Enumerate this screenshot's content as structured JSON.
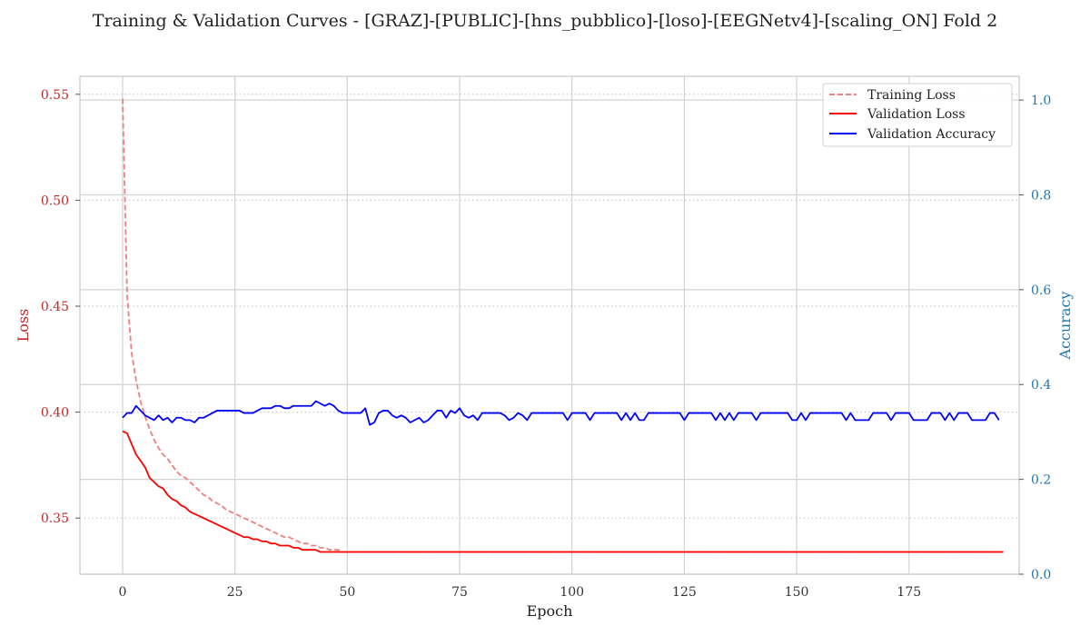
{
  "chart_data": {
    "type": "line",
    "title": "Training & Validation Curves - [GRAZ]-[PUBLIC]-[hns_pubblico]-[loso]-[EEGNetv4]-[scaling_ON] Fold 2",
    "xlabel": "Epoch",
    "ylabel_left": "Loss",
    "ylabel_right": "Accuracy",
    "xlim": [
      -9.5,
      199.5
    ],
    "ylim_left": [
      0.3235,
      0.5585
    ],
    "ylim_right": [
      0.0,
      1.05
    ],
    "xticks": [
      0,
      25,
      50,
      75,
      100,
      125,
      150,
      175
    ],
    "yticks_left": [
      0.35,
      0.4,
      0.45,
      0.5,
      0.55
    ],
    "yticks_left_labels": [
      "0.35",
      "0.40",
      "0.45",
      "0.50",
      "0.55"
    ],
    "yticks_right": [
      0.0,
      0.2,
      0.4,
      0.6,
      0.8,
      1.0
    ],
    "yticks_right_labels": [
      "0.0",
      "0.2",
      "0.4",
      "0.6",
      "0.8",
      "1.0"
    ],
    "grid": true,
    "legend_position": "top-right",
    "colors": {
      "training_loss": "#f08080",
      "validation_loss": "#ff0000",
      "validation_accuracy": "#0000ff",
      "left_axis": "#c62828",
      "right_axis": "#1f77b4"
    },
    "series": [
      {
        "name": "Training Loss",
        "axis": "left",
        "style": "dashed",
        "x_start": 0,
        "values": [
          0.548,
          0.455,
          0.428,
          0.415,
          0.405,
          0.398,
          0.392,
          0.387,
          0.383,
          0.38,
          0.378,
          0.375,
          0.372,
          0.37,
          0.369,
          0.367,
          0.365,
          0.363,
          0.361,
          0.36,
          0.358,
          0.357,
          0.356,
          0.354,
          0.353,
          0.352,
          0.351,
          0.35,
          0.349,
          0.348,
          0.347,
          0.346,
          0.345,
          0.344,
          0.343,
          0.342,
          0.341,
          0.341,
          0.34,
          0.339,
          0.338,
          0.338,
          0.337,
          0.337,
          0.336,
          0.336,
          0.335,
          0.335,
          0.335,
          0.334,
          0.334,
          0.334,
          0.334,
          0.334,
          0.334,
          0.334,
          0.334,
          0.334,
          0.334,
          0.334,
          0.334,
          0.334,
          0.334,
          0.334,
          0.334,
          0.334,
          0.334,
          0.334,
          0.334,
          0.334,
          0.334,
          0.334,
          0.334,
          0.334,
          0.334,
          0.334,
          0.334,
          0.334,
          0.334,
          0.334,
          0.334,
          0.334,
          0.334,
          0.334,
          0.334,
          0.334,
          0.334,
          0.334,
          0.334,
          0.334,
          0.334,
          0.334,
          0.334,
          0.334,
          0.334,
          0.334,
          0.334,
          0.334,
          0.334,
          0.334,
          0.334,
          0.334,
          0.334,
          0.334,
          0.334,
          0.334,
          0.334,
          0.334,
          0.334,
          0.334,
          0.334,
          0.334,
          0.334,
          0.334,
          0.334,
          0.334,
          0.334,
          0.334,
          0.334,
          0.334,
          0.334,
          0.334,
          0.334,
          0.334,
          0.334,
          0.334,
          0.334,
          0.334,
          0.334,
          0.334,
          0.334,
          0.334,
          0.334,
          0.334,
          0.334,
          0.334,
          0.334,
          0.334,
          0.334,
          0.334,
          0.334,
          0.334,
          0.334,
          0.334,
          0.334,
          0.334,
          0.334,
          0.334,
          0.334,
          0.334,
          0.334,
          0.334,
          0.334,
          0.334,
          0.334,
          0.334,
          0.334,
          0.334,
          0.334,
          0.334,
          0.334,
          0.334,
          0.334,
          0.334,
          0.334,
          0.334,
          0.334,
          0.334,
          0.334,
          0.334,
          0.334,
          0.334,
          0.334,
          0.334,
          0.334,
          0.334,
          0.334,
          0.334,
          0.334,
          0.334,
          0.334,
          0.334,
          0.334,
          0.334,
          0.334,
          0.334,
          0.334,
          0.334,
          0.334,
          0.334,
          0.334,
          0.334,
          0.334,
          0.334,
          0.334,
          0.334
        ]
      },
      {
        "name": "Validation Loss",
        "axis": "left",
        "style": "solid",
        "x_start": 0,
        "values": [
          0.391,
          0.39,
          0.385,
          0.38,
          0.377,
          0.374,
          0.369,
          0.367,
          0.365,
          0.364,
          0.361,
          0.359,
          0.358,
          0.356,
          0.355,
          0.353,
          0.352,
          0.351,
          0.35,
          0.349,
          0.348,
          0.347,
          0.346,
          0.345,
          0.344,
          0.343,
          0.342,
          0.341,
          0.341,
          0.34,
          0.34,
          0.339,
          0.339,
          0.338,
          0.338,
          0.337,
          0.337,
          0.337,
          0.336,
          0.336,
          0.335,
          0.335,
          0.335,
          0.335,
          0.334,
          0.334,
          0.334,
          0.334,
          0.334,
          0.334,
          0.334,
          0.334,
          0.334,
          0.334,
          0.334,
          0.334,
          0.334,
          0.334,
          0.334,
          0.334,
          0.334,
          0.334,
          0.334,
          0.334,
          0.334,
          0.334,
          0.334,
          0.334,
          0.334,
          0.334,
          0.334,
          0.334,
          0.334,
          0.334,
          0.334,
          0.334,
          0.334,
          0.334,
          0.334,
          0.334,
          0.334,
          0.334,
          0.334,
          0.334,
          0.334,
          0.334,
          0.334,
          0.334,
          0.334,
          0.334,
          0.334,
          0.334,
          0.334,
          0.334,
          0.334,
          0.334,
          0.334,
          0.334,
          0.334,
          0.334,
          0.334,
          0.334,
          0.334,
          0.334,
          0.334,
          0.334,
          0.334,
          0.334,
          0.334,
          0.334,
          0.334,
          0.334,
          0.334,
          0.334,
          0.334,
          0.334,
          0.334,
          0.334,
          0.334,
          0.334,
          0.334,
          0.334,
          0.334,
          0.334,
          0.334,
          0.334,
          0.334,
          0.334,
          0.334,
          0.334,
          0.334,
          0.334,
          0.334,
          0.334,
          0.334,
          0.334,
          0.334,
          0.334,
          0.334,
          0.334,
          0.334,
          0.334,
          0.334,
          0.334,
          0.334,
          0.334,
          0.334,
          0.334,
          0.334,
          0.334,
          0.334,
          0.334,
          0.334,
          0.334,
          0.334,
          0.334,
          0.334,
          0.334,
          0.334,
          0.334,
          0.334,
          0.334,
          0.334,
          0.334,
          0.334,
          0.334,
          0.334,
          0.334,
          0.334,
          0.334,
          0.334,
          0.334,
          0.334,
          0.334,
          0.334,
          0.334,
          0.334,
          0.334,
          0.334,
          0.334,
          0.334,
          0.334,
          0.334,
          0.334,
          0.334,
          0.334,
          0.334,
          0.334,
          0.334,
          0.334,
          0.334,
          0.334,
          0.334,
          0.334,
          0.334,
          0.334,
          0.334
        ]
      },
      {
        "name": "Validation Accuracy",
        "axis": "right",
        "style": "solid",
        "x_start": 0,
        "values": [
          0.33,
          0.34,
          0.34,
          0.355,
          0.345,
          0.335,
          0.33,
          0.325,
          0.335,
          0.325,
          0.33,
          0.32,
          0.33,
          0.33,
          0.325,
          0.325,
          0.32,
          0.33,
          0.33,
          0.335,
          0.34,
          0.345,
          0.345,
          0.345,
          0.345,
          0.345,
          0.345,
          0.34,
          0.34,
          0.34,
          0.345,
          0.35,
          0.35,
          0.35,
          0.355,
          0.355,
          0.35,
          0.35,
          0.355,
          0.355,
          0.355,
          0.355,
          0.355,
          0.365,
          0.36,
          0.355,
          0.36,
          0.355,
          0.345,
          0.34,
          0.34,
          0.34,
          0.34,
          0.34,
          0.35,
          0.315,
          0.32,
          0.34,
          0.345,
          0.345,
          0.335,
          0.33,
          0.335,
          0.33,
          0.32,
          0.325,
          0.33,
          0.32,
          0.325,
          0.335,
          0.345,
          0.345,
          0.33,
          0.345,
          0.34,
          0.35,
          0.335,
          0.33,
          0.335,
          0.325,
          0.34,
          0.34,
          0.34,
          0.34,
          0.34,
          0.335,
          0.325,
          0.33,
          0.34,
          0.335,
          0.325,
          0.34,
          0.34,
          0.34,
          0.34,
          0.34,
          0.34,
          0.34,
          0.34,
          0.325,
          0.34,
          0.34,
          0.34,
          0.34,
          0.325,
          0.34,
          0.34,
          0.34,
          0.34,
          0.34,
          0.34,
          0.325,
          0.34,
          0.325,
          0.34,
          0.325,
          0.325,
          0.34,
          0.34,
          0.34,
          0.34,
          0.34,
          0.34,
          0.34,
          0.34,
          0.325,
          0.34,
          0.34,
          0.34,
          0.34,
          0.34,
          0.34,
          0.325,
          0.34,
          0.325,
          0.34,
          0.325,
          0.34,
          0.34,
          0.34,
          0.34,
          0.325,
          0.34,
          0.34,
          0.34,
          0.34,
          0.34,
          0.34,
          0.34,
          0.325,
          0.325,
          0.34,
          0.325,
          0.34,
          0.34,
          0.34,
          0.34,
          0.34,
          0.34,
          0.34,
          0.34,
          0.325,
          0.34,
          0.325,
          0.325,
          0.325,
          0.325,
          0.34,
          0.34,
          0.34,
          0.34,
          0.325,
          0.34,
          0.34,
          0.34,
          0.34,
          0.325,
          0.325,
          0.325,
          0.325,
          0.34,
          0.34,
          0.34,
          0.325,
          0.34,
          0.325,
          0.34,
          0.34,
          0.34,
          0.325,
          0.325,
          0.325,
          0.325,
          0.34,
          0.34,
          0.325
        ]
      }
    ]
  }
}
